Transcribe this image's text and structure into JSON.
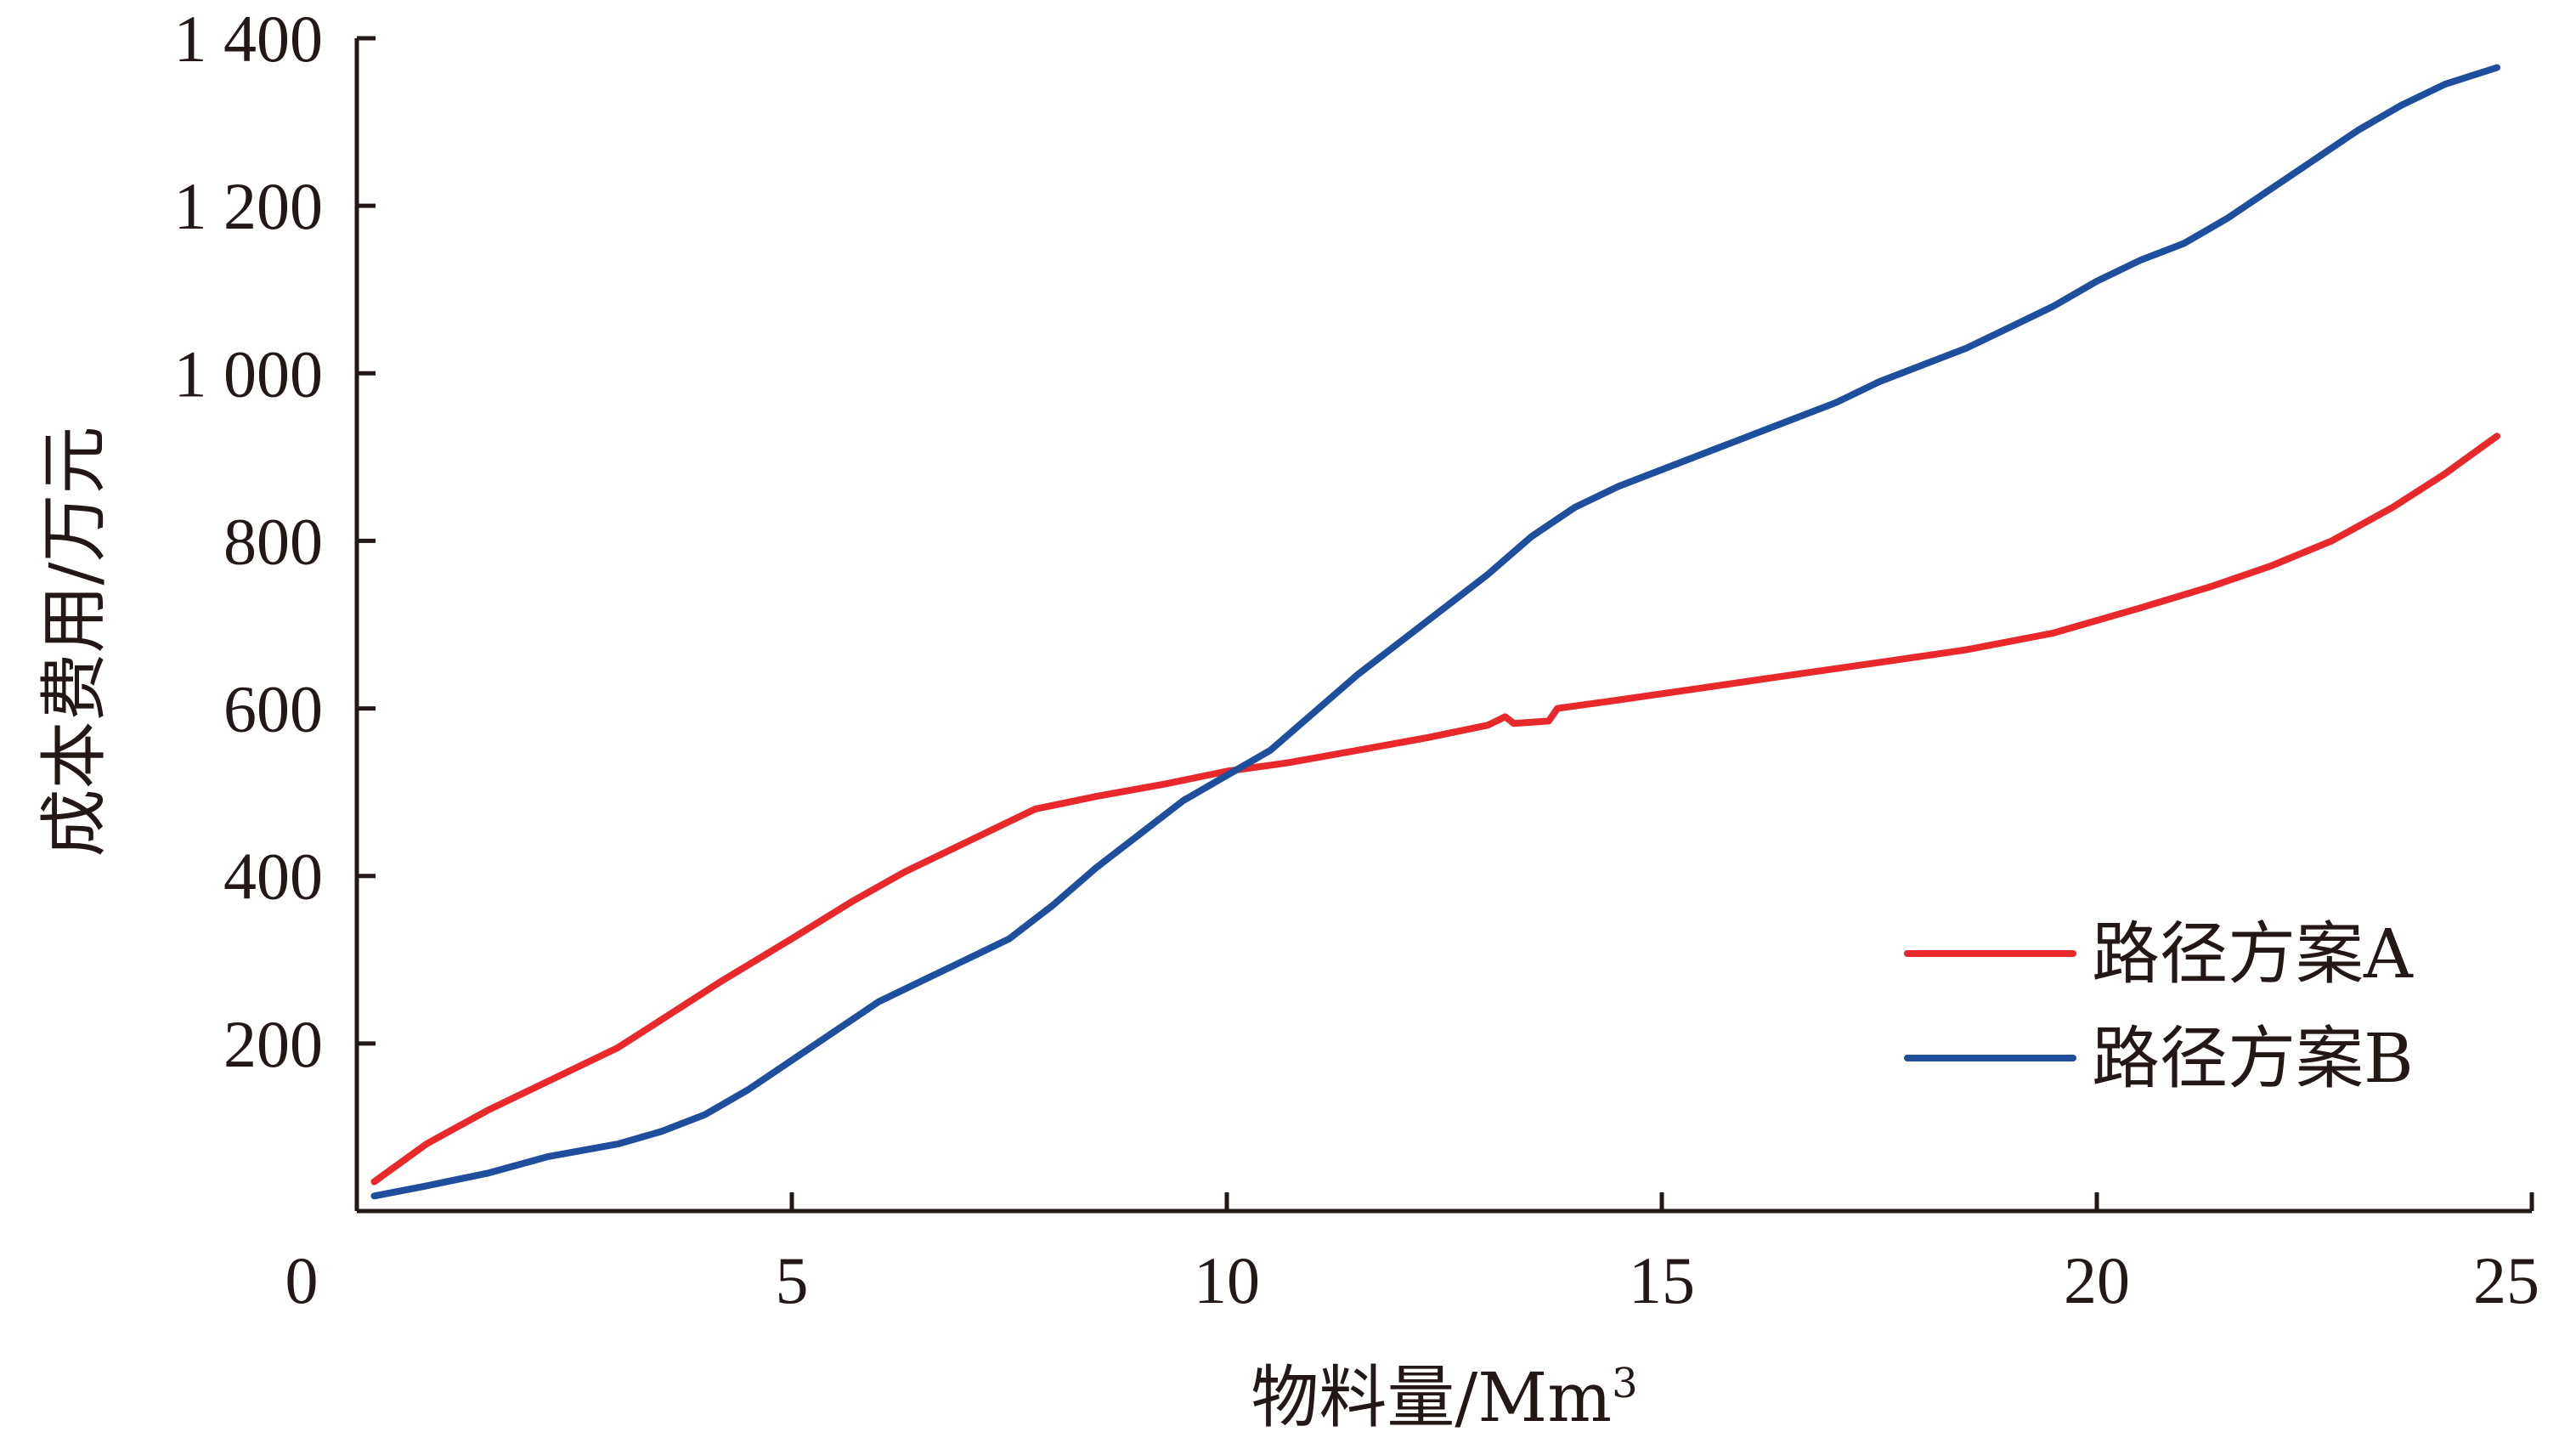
{
  "chart_data": {
    "type": "line",
    "title": "",
    "xlabel": "物料量/Mm",
    "xlabel_sup": "3",
    "ylabel": "成本费用/万元",
    "xlim": [
      0,
      25
    ],
    "ylim": [
      0,
      1400
    ],
    "x_ticks": [
      0,
      5,
      10,
      15,
      20,
      25
    ],
    "x_tick_labels": [
      "0",
      "5",
      "10",
      "15",
      "20",
      "25"
    ],
    "y_ticks": [
      200,
      400,
      600,
      800,
      1000,
      1200,
      1400
    ],
    "y_tick_labels": [
      "200",
      "400",
      "600",
      "800",
      "1 000",
      "1 200",
      "1 400"
    ],
    "grid": false,
    "legend_position": "bottom-right",
    "series": [
      {
        "name": "路径方案A",
        "color": "#e8282b",
        "x": [
          0.2,
          0.8,
          1.5,
          2.2,
          3.0,
          3.6,
          4.2,
          5.0,
          5.7,
          6.3,
          7.0,
          7.8,
          8.5,
          9.3,
          10.0,
          10.7,
          11.5,
          12.3,
          13.0,
          13.2,
          13.3,
          13.7,
          13.8,
          14.5,
          15.5,
          16.5,
          17.5,
          18.5,
          19.5,
          20.5,
          21.3,
          22.0,
          22.7,
          23.4,
          24.0,
          24.6
        ],
        "y": [
          35,
          80,
          120,
          155,
          195,
          235,
          275,
          325,
          370,
          405,
          440,
          480,
          495,
          510,
          525,
          535,
          550,
          565,
          580,
          590,
          582,
          585,
          600,
          610,
          625,
          640,
          655,
          670,
          690,
          720,
          745,
          770,
          800,
          840,
          880,
          925
        ]
      },
      {
        "name": "路径方案B",
        "color": "#1f4e9c",
        "x": [
          0.2,
          0.8,
          1.5,
          2.2,
          3.0,
          3.5,
          4.0,
          4.5,
          5.0,
          5.5,
          6.0,
          6.5,
          7.0,
          7.5,
          8.0,
          8.5,
          9.0,
          9.5,
          10.0,
          10.5,
          11.0,
          11.5,
          12.0,
          12.5,
          13.0,
          13.5,
          14.0,
          14.5,
          15.0,
          15.5,
          16.0,
          16.5,
          17.0,
          17.5,
          18.0,
          18.5,
          19.0,
          19.5,
          20.0,
          20.5,
          21.0,
          21.5,
          22.0,
          22.5,
          23.0,
          23.5,
          24.0,
          24.6
        ],
        "y": [
          18,
          30,
          45,
          65,
          80,
          95,
          115,
          145,
          180,
          215,
          250,
          275,
          300,
          325,
          365,
          410,
          450,
          490,
          520,
          550,
          595,
          640,
          680,
          720,
          760,
          805,
          840,
          865,
          885,
          905,
          925,
          945,
          965,
          990,
          1010,
          1030,
          1055,
          1080,
          1110,
          1135,
          1155,
          1185,
          1220,
          1255,
          1290,
          1320,
          1345,
          1365
        ]
      }
    ]
  }
}
